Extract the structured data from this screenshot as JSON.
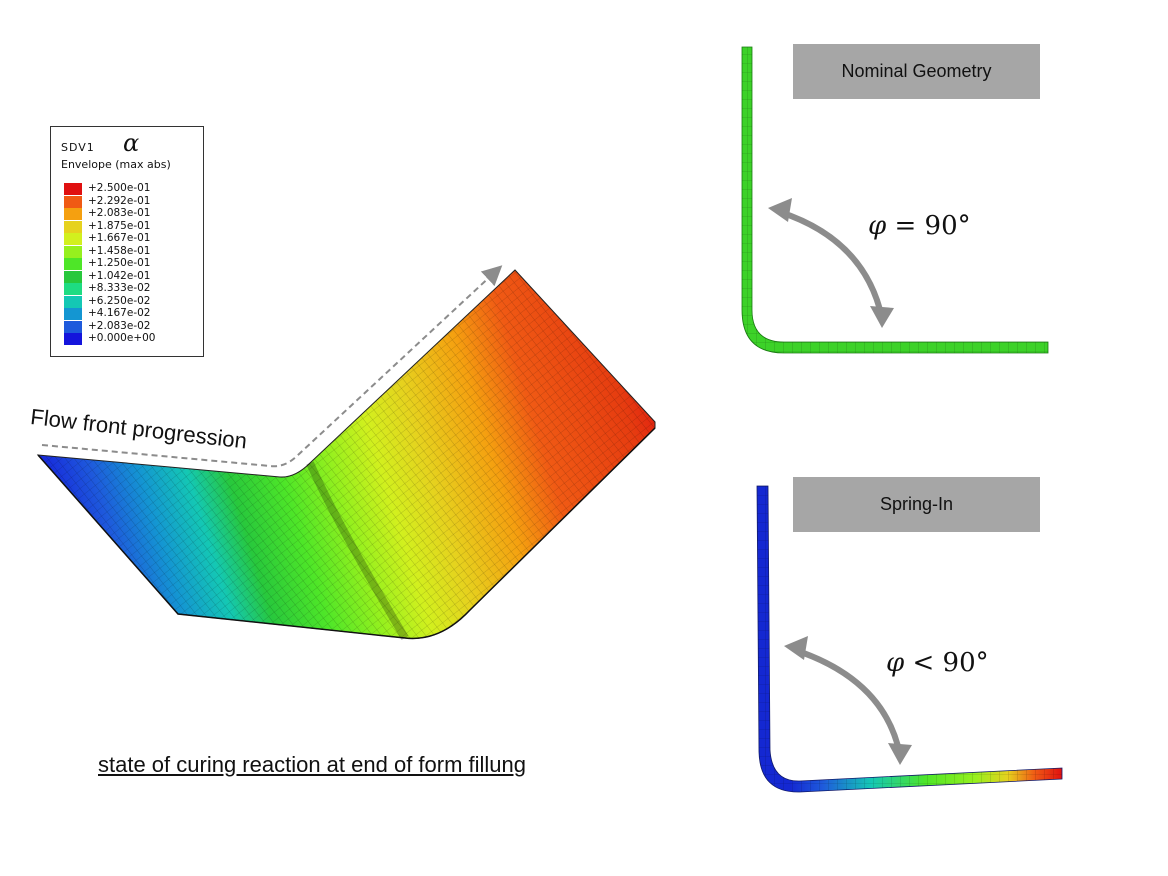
{
  "legend": {
    "variable": "SDV1",
    "symbol": "α",
    "subtitle": "Envelope (max abs)",
    "entries": [
      {
        "label": "+2.500e-01",
        "color": "#e01010"
      },
      {
        "label": "+2.292e-01",
        "color": "#f05a14"
      },
      {
        "label": "+2.083e-01",
        "color": "#f5a010"
      },
      {
        "label": "+1.875e-01",
        "color": "#e6d21e"
      },
      {
        "label": "+1.667e-01",
        "color": "#d2f01e"
      },
      {
        "label": "+1.458e-01",
        "color": "#96f01e"
      },
      {
        "label": "+1.250e-01",
        "color": "#4ee628"
      },
      {
        "label": "+1.042e-01",
        "color": "#28c83c"
      },
      {
        "label": "+8.333e-02",
        "color": "#1edc82"
      },
      {
        "label": "+6.250e-02",
        "color": "#14c8b4"
      },
      {
        "label": "+4.167e-02",
        "color": "#1496d2"
      },
      {
        "label": "+2.083e-02",
        "color": "#1e5adc"
      },
      {
        "label": "+0.000e+00",
        "color": "#1414dc"
      }
    ]
  },
  "main_view": {
    "flow_label": "Flow front progression",
    "caption": "state of curing reaction at end of form fillung"
  },
  "nominal": {
    "title": "Nominal Geometry",
    "angle_symbol": "φ",
    "angle_relation": "= 90°",
    "color": "#3cd228"
  },
  "spring_in": {
    "title": "Spring-In",
    "angle_symbol": "φ",
    "angle_relation": "< 90°",
    "color": "#1428d2"
  },
  "colors": {
    "arrow": "#8c8c8c",
    "tag_background": "#a6a6a6"
  }
}
